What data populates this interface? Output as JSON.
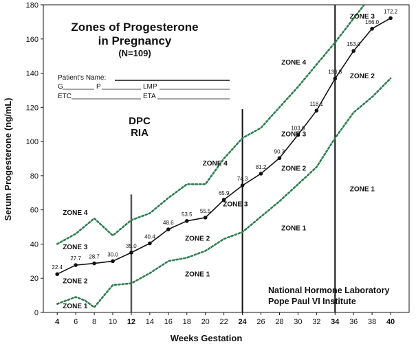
{
  "chart_data": {
    "type": "line",
    "title": "Zones of Progesterone",
    "title_line2": "in Pregnancy",
    "subtitle": "(N=109)",
    "xlabel": "Weeks Gestation",
    "ylabel": "Serum Progesterone (ng/mL)",
    "xlim": [
      2.5,
      42
    ],
    "ylim": [
      0,
      180
    ],
    "x_ticks": [
      4,
      6,
      8,
      10,
      12,
      14,
      16,
      18,
      20,
      22,
      24,
      26,
      28,
      30,
      32,
      34,
      36,
      38,
      40
    ],
    "bold_x_ticks": [
      4,
      12,
      24,
      34,
      40
    ],
    "y_ticks": [
      0,
      20,
      40,
      60,
      80,
      100,
      120,
      140,
      160,
      180
    ],
    "grid": false,
    "legend": "none",
    "series": [
      {
        "style": "solid-with-markers",
        "color": "#111111",
        "x": [
          4,
          6,
          8,
          10,
          12,
          14,
          16,
          18,
          20,
          22,
          24,
          26,
          28,
          30,
          32,
          34,
          36,
          38,
          40
        ],
        "values": [
          22.4,
          27.7,
          28.7,
          30.0,
          35.0,
          40.4,
          48.6,
          53.5,
          55.5,
          65.9,
          74.3,
          81.2,
          90.3,
          103.9,
          118.1,
          136.8,
          153.0,
          166.0,
          172.2
        ],
        "labels": [
          "22.4",
          "27.7",
          "28.7",
          "30.0",
          "35.0",
          "40.4",
          "48.6",
          "53.5",
          "55.5",
          "65.9",
          "74.3",
          "81.2",
          "90.3",
          "103.9",
          "118.1",
          "136.8",
          "153.0",
          "166.0",
          "172.2"
        ]
      },
      {
        "style": "dotted",
        "color": "#2e7d4f",
        "x": [
          4,
          6,
          8,
          10,
          12,
          14,
          16,
          18,
          20,
          22,
          24,
          26,
          28,
          30,
          32,
          34,
          36,
          38,
          40
        ],
        "values": [
          40,
          46,
          55,
          45,
          54,
          58,
          67,
          75,
          75,
          90,
          102,
          108,
          120,
          132,
          145,
          158,
          172,
          186,
          200
        ]
      },
      {
        "style": "dotted",
        "color": "#2e7d4f",
        "x": [
          4,
          6,
          7,
          8,
          10,
          12,
          14,
          16,
          18,
          20,
          22,
          24,
          26,
          28,
          30,
          32,
          34,
          36,
          38,
          40
        ],
        "values": [
          5,
          9,
          7,
          3,
          16,
          17,
          23,
          30,
          32,
          36,
          43,
          47,
          56,
          65,
          75,
          85,
          102,
          117,
          126,
          137
        ]
      }
    ],
    "vertical_lines": [
      {
        "x": 12,
        "y_range": [
          0,
          69
        ],
        "width": 2.5,
        "color": "#555555"
      },
      {
        "x": 24,
        "y_range": [
          0,
          119
        ],
        "width": 2,
        "color": "#111111"
      },
      {
        "x": 34,
        "y_range": [
          0,
          181
        ],
        "width": 2,
        "color": "#111111"
      }
    ],
    "zone_labels": [
      {
        "text": "ZONE 4",
        "x": 4.6,
        "y": 57
      },
      {
        "text": "ZONE 3",
        "x": 4.6,
        "y": 37
      },
      {
        "text": "ZONE 2",
        "x": 4.6,
        "y": 17
      },
      {
        "text": "ZONE 1",
        "x": 4.6,
        "y": 2.5
      },
      {
        "text": "ZONE 4",
        "x": 19.7,
        "y": 86
      },
      {
        "text": "ZONE 3",
        "x": 21.9,
        "y": 62
      },
      {
        "text": "ZONE 2",
        "x": 17.8,
        "y": 42
      },
      {
        "text": "ZONE 1",
        "x": 17.8,
        "y": 21
      },
      {
        "text": "ZONE 4",
        "x": 28.2,
        "y": 145
      },
      {
        "text": "ZONE 3",
        "x": 28.2,
        "y": 103
      },
      {
        "text": "ZONE 2",
        "x": 28.2,
        "y": 83
      },
      {
        "text": "ZONE 1",
        "x": 28.2,
        "y": 48
      },
      {
        "text": "ZONE 3",
        "x": 35.6,
        "y": 172
      },
      {
        "text": "ZONE 2",
        "x": 35.6,
        "y": 137
      },
      {
        "text": "ZONE 1",
        "x": 35.6,
        "y": 71
      }
    ]
  },
  "annotations": {
    "form_patient_name": "Patient's Name:",
    "form_g": "G",
    "form_p": "P",
    "form_lmp": "LMP",
    "form_etc": "ETC",
    "form_eta": "ETA",
    "method_line1": "DPC",
    "method_line2": "RIA",
    "lab_line1": "National Hormone Laboratory",
    "lab_line2": "Pope Paul VI Institute"
  }
}
